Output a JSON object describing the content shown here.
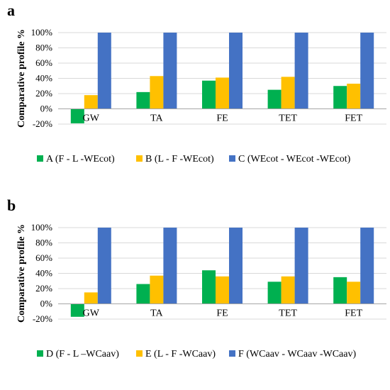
{
  "colors": {
    "green": "#00B050",
    "yellow": "#FFC000",
    "blue": "#4472C4",
    "grid": "#D9D9D9",
    "axis": "#A6A6A6"
  },
  "chart_data": [
    {
      "type": "bar",
      "panel_label": "a",
      "ylabel": "Comparative profile %",
      "ylim": [
        -20,
        100
      ],
      "yticks": [
        "-20%",
        "0%",
        "20%",
        "40%",
        "60%",
        "80%",
        "100%"
      ],
      "ytick_values": [
        -20,
        0,
        20,
        40,
        60,
        80,
        100
      ],
      "categories": [
        "GW",
        "TA",
        "FE",
        "TET",
        "FET"
      ],
      "grid": true,
      "legend_position": "bottom",
      "series": [
        {
          "name": "A (F - L -WEcot)",
          "color": "#00B050",
          "values": [
            -19,
            22,
            37,
            25,
            30
          ]
        },
        {
          "name": "B (L - F -WEcot)",
          "color": "#FFC000",
          "values": [
            18,
            43,
            41,
            42,
            33
          ]
        },
        {
          "name": "C (WEcot - WEcot -WEcot)",
          "color": "#4472C4",
          "values": [
            100,
            100,
            100,
            100,
            100
          ]
        }
      ]
    },
    {
      "type": "bar",
      "panel_label": "b",
      "ylabel": "Comparative profile %",
      "ylim": [
        -20,
        100
      ],
      "yticks": [
        "-20%",
        "0%",
        "20%",
        "40%",
        "60%",
        "80%",
        "100%"
      ],
      "ytick_values": [
        -20,
        0,
        20,
        40,
        60,
        80,
        100
      ],
      "categories": [
        "GW",
        "TA",
        "FE",
        "TET",
        "FET"
      ],
      "grid": true,
      "legend_position": "bottom",
      "series": [
        {
          "name": "D (F - L –WCaav)",
          "color": "#00B050",
          "values": [
            -17,
            26,
            44,
            29,
            35
          ]
        },
        {
          "name": "E (L - F -WCaav)",
          "color": "#FFC000",
          "values": [
            15,
            37,
            36,
            36,
            29
          ]
        },
        {
          "name": "F (WCaav - WCaav -WCaav)",
          "color": "#4472C4",
          "values": [
            100,
            100,
            100,
            100,
            100
          ]
        }
      ]
    }
  ]
}
